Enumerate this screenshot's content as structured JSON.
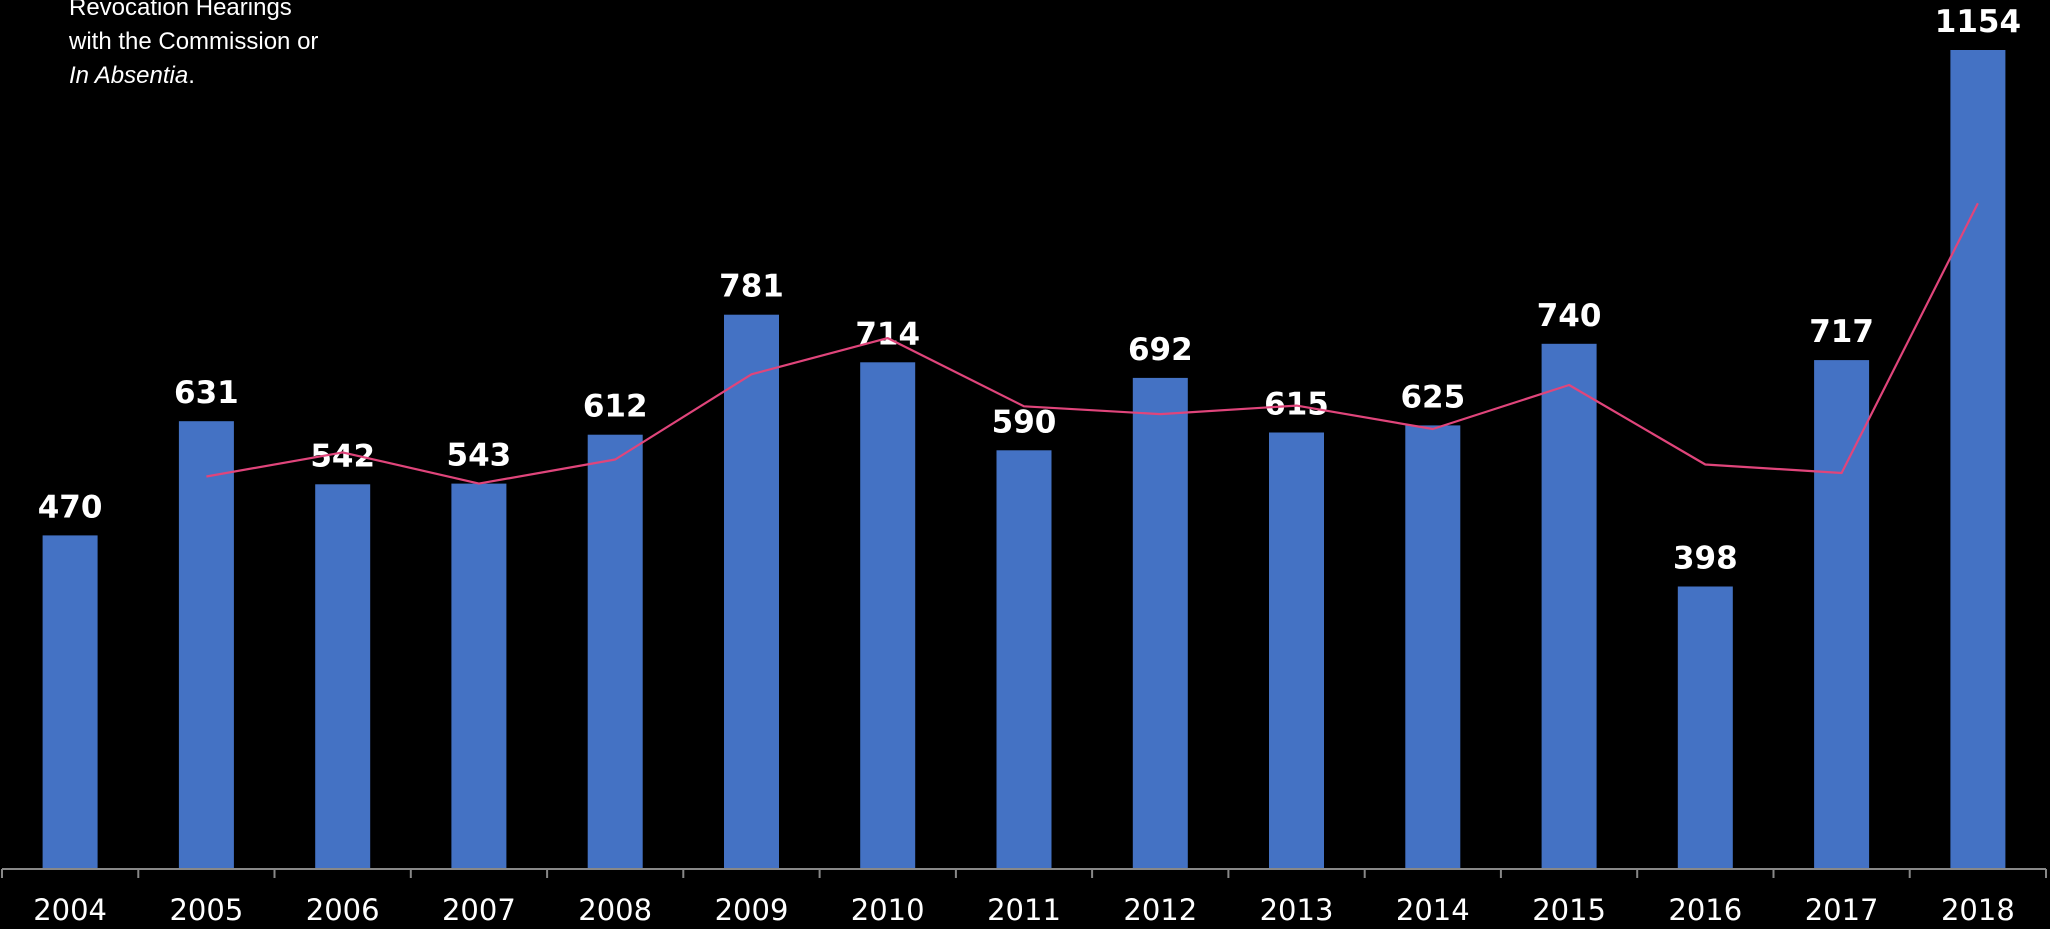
{
  "note": {
    "line1": "Revocation Hearings",
    "line2": "with the Commission or",
    "line3_italic": "In Absentia",
    "line3_suffix": "."
  },
  "chart_data": {
    "type": "bar",
    "categories": [
      "2004",
      "2005",
      "2006",
      "2007",
      "2008",
      "2009",
      "2010",
      "2011",
      "2012",
      "2013",
      "2014",
      "2015",
      "2016",
      "2017",
      "2018"
    ],
    "series": [
      {
        "values": [
          470,
          631,
          542,
          543,
          612,
          781,
          714,
          590,
          692,
          615,
          625,
          740,
          398,
          717,
          1154
        ],
        "color": "#4472C4"
      }
    ],
    "trend_line": {
      "type": "line",
      "color": "#E0457B",
      "x": [
        "2005",
        "2006",
        "2007",
        "2008",
        "2009",
        "2010",
        "2011",
        "2012",
        "2013",
        "2014",
        "2015",
        "2016",
        "2017",
        "2018"
      ],
      "values": [
        553,
        587,
        543,
        577,
        697,
        748,
        652,
        641,
        653,
        620,
        682,
        570,
        558,
        938
      ]
    },
    "ylim": [
      0,
      1154
    ],
    "grid": false,
    "legend": "none",
    "data_labels": true
  }
}
